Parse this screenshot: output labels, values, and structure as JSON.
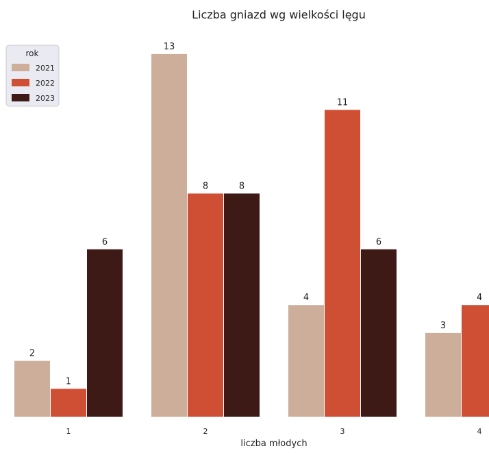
{
  "chart_data": {
    "type": "bar",
    "title": "Liczba gniazd wg wielkości lęgu",
    "xlabel": "liczba młodych",
    "ylabel": "",
    "categories": [
      "1",
      "2",
      "3",
      "4"
    ],
    "series": [
      {
        "name": "2021",
        "color": "#cdae9a",
        "values": [
          2,
          13,
          4,
          3
        ]
      },
      {
        "name": "2022",
        "color": "#cf4f35",
        "values": [
          1,
          8,
          11,
          4
        ]
      },
      {
        "name": "2023",
        "color": "#3d1a16",
        "values": [
          6,
          8,
          6,
          null
        ]
      }
    ],
    "ylim": [
      0,
      13
    ],
    "grid": false,
    "legend": {
      "title": "rok",
      "placement": "top-left"
    }
  }
}
